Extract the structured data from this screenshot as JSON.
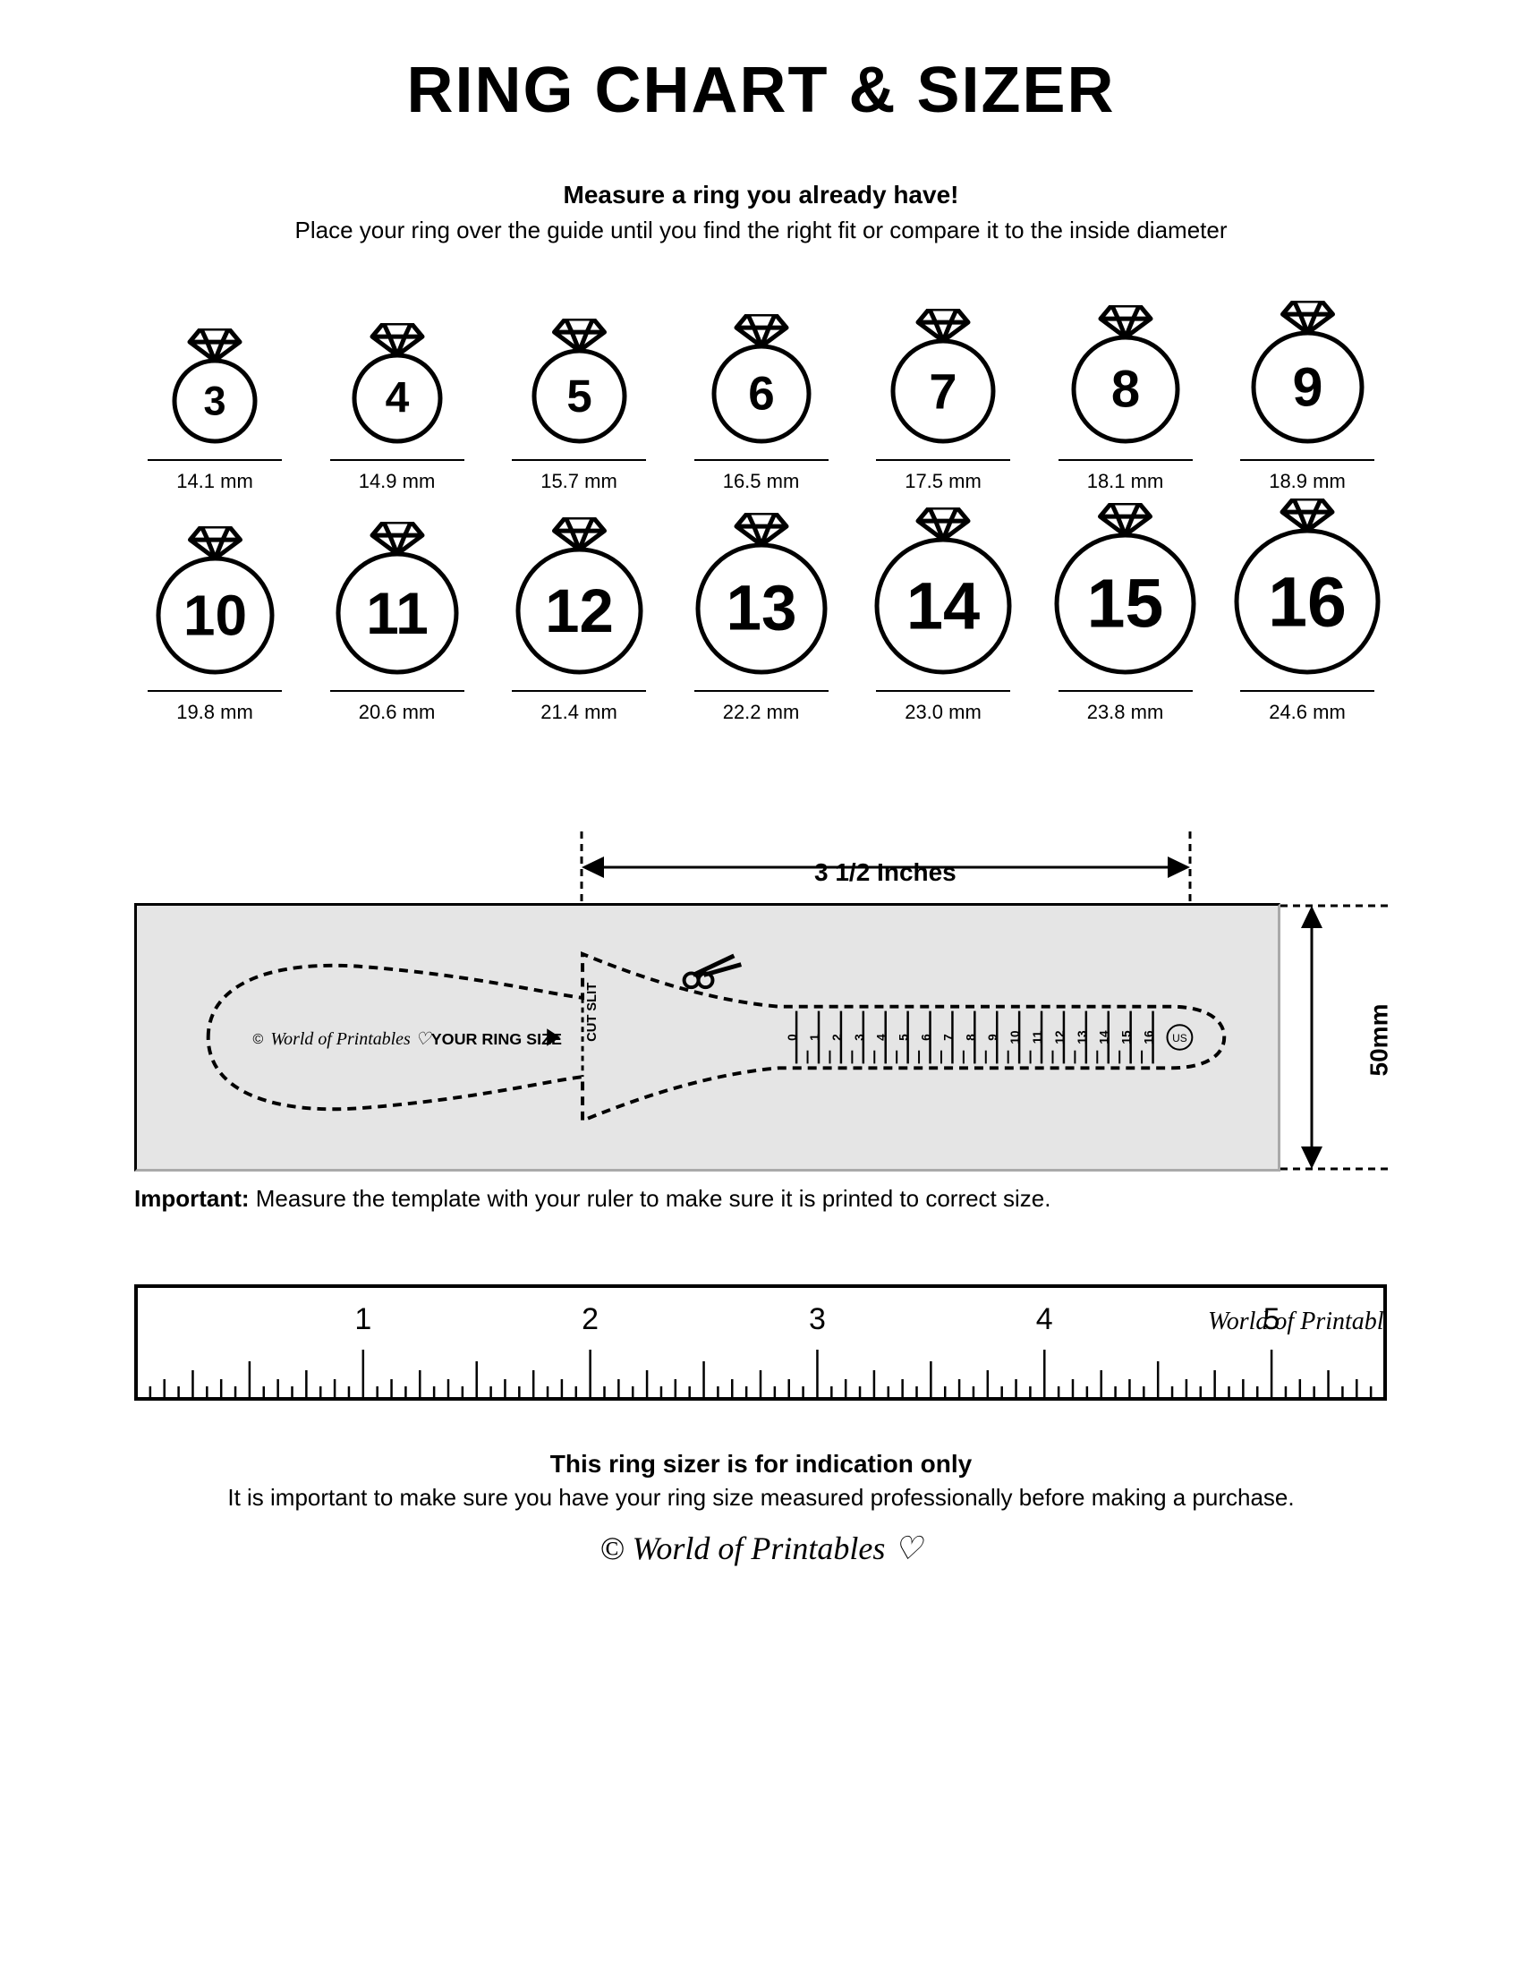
{
  "title": "RING CHART & SIZER",
  "subtitle_bold": "Measure a ring you already have!",
  "subtitle_text": "Place your ring over the guide until you find the right fit or compare it to the inside diameter",
  "rings": [
    {
      "size": "3",
      "mm": "14.1 mm",
      "diameter": 90
    },
    {
      "size": "4",
      "mm": "14.9 mm",
      "diameter": 96
    },
    {
      "size": "5",
      "mm": "15.7 mm",
      "diameter": 101
    },
    {
      "size": "6",
      "mm": "16.5 mm",
      "diameter": 106
    },
    {
      "size": "7",
      "mm": "17.5 mm",
      "diameter": 112
    },
    {
      "size": "8",
      "mm": "18.1 mm",
      "diameter": 116
    },
    {
      "size": "9",
      "mm": "18.9 mm",
      "diameter": 121
    },
    {
      "size": "10",
      "mm": "19.8 mm",
      "diameter": 127
    },
    {
      "size": "11",
      "mm": "20.6 mm",
      "diameter": 132
    },
    {
      "size": "12",
      "mm": "21.4 mm",
      "diameter": 137
    },
    {
      "size": "13",
      "mm": "22.2 mm",
      "diameter": 142
    },
    {
      "size": "14",
      "mm": "23.0 mm",
      "diameter": 148
    },
    {
      "size": "15",
      "mm": "23.8 mm",
      "diameter": 153
    },
    {
      "size": "16",
      "mm": "24.6 mm",
      "diameter": 158
    }
  ],
  "ring_stroke": "#000000",
  "ring_stroke_width": 5,
  "diamond_height": 36,
  "sizer": {
    "top_dim_label": "3 1/2 Inches",
    "side_dim_label": "50mm",
    "your_ring_size": "YOUR RING SIZE",
    "cut_slit": "CUT SLIT",
    "brand": "World of Printables",
    "us_label": "US",
    "scale_marks": [
      "0",
      "1",
      "2",
      "3",
      "4",
      "5",
      "6",
      "7",
      "8",
      "9",
      "10",
      "11",
      "12",
      "13",
      "14",
      "15",
      "16"
    ],
    "box_bg": "#e5e5e5",
    "important_label": "Important:",
    "important_text": " Measure the template with your ruler to make sure it is printed to correct size."
  },
  "ruler": {
    "labels": [
      "1",
      "2",
      "3",
      "4",
      "5"
    ],
    "brand": "World of Printables"
  },
  "footer": {
    "bold": "This ring sizer is for indication only",
    "text": "It is important to make sure you have your ring size measured professionally before making a purchase.",
    "brand": "© World of Printables ♡"
  }
}
